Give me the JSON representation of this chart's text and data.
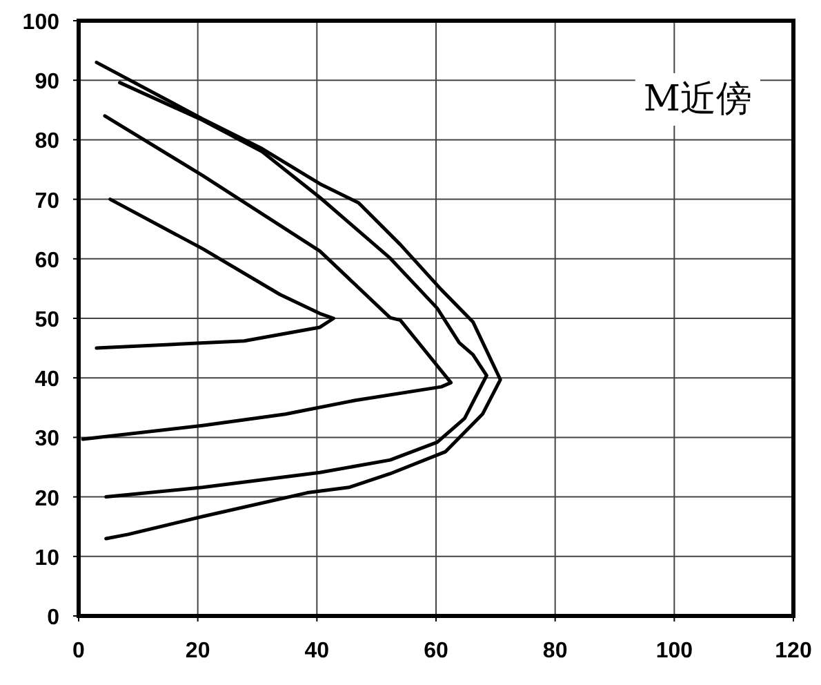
{
  "chart_data": {
    "type": "line",
    "xlim": [
      0,
      120
    ],
    "ylim": [
      0,
      100
    ],
    "xticks": [
      0,
      20,
      40,
      60,
      80,
      100,
      120
    ],
    "yticks": [
      0,
      10,
      20,
      30,
      40,
      50,
      60,
      70,
      80,
      90,
      100
    ],
    "grid": true,
    "annotations": [
      "M近傍"
    ],
    "series": [
      {
        "color": "#000000",
        "x": [
          5.3,
          20.8,
          33.8,
          40.5,
          42.8,
          40.5,
          27.8,
          3
        ],
        "values": [
          70,
          61.7,
          54,
          50.8,
          50,
          48.5,
          46.2,
          45
        ]
      },
      {
        "color": "#000000",
        "x": [
          4.4,
          20.8,
          40.5,
          52.3,
          54,
          62.5,
          60.9,
          46.3,
          34.7,
          20.8,
          0.7
        ],
        "values": [
          84,
          74,
          61.3,
          50.1,
          49.7,
          39.2,
          38.5,
          36.2,
          33.9,
          32,
          29.7
        ]
      },
      {
        "color": "#000000",
        "x": [
          6.9,
          20.8,
          30.8,
          40.5,
          52.3,
          60.2,
          63.9,
          66.2,
          68.5,
          64.8,
          60.2,
          52.3,
          40.5,
          20.8,
          4.6
        ],
        "values": [
          89.6,
          83.3,
          78,
          70.3,
          60.1,
          51.7,
          45.9,
          43.9,
          40.4,
          33.2,
          29.2,
          26.2,
          24.1,
          21.6,
          20
        ]
      },
      {
        "color": "#000000",
        "x": [
          3,
          20.8,
          30.8,
          40.5,
          47,
          54,
          60.9,
          66.2,
          70.8,
          67.8,
          61.6,
          52.3,
          45.4,
          38.4,
          20.8,
          8.3,
          4.6
        ],
        "values": [
          93,
          83.5,
          78.5,
          72.6,
          69.4,
          62.4,
          54.8,
          49.4,
          39.7,
          33.9,
          27.6,
          23.9,
          21.6,
          20.7,
          16.7,
          13.7,
          13
        ]
      }
    ]
  }
}
